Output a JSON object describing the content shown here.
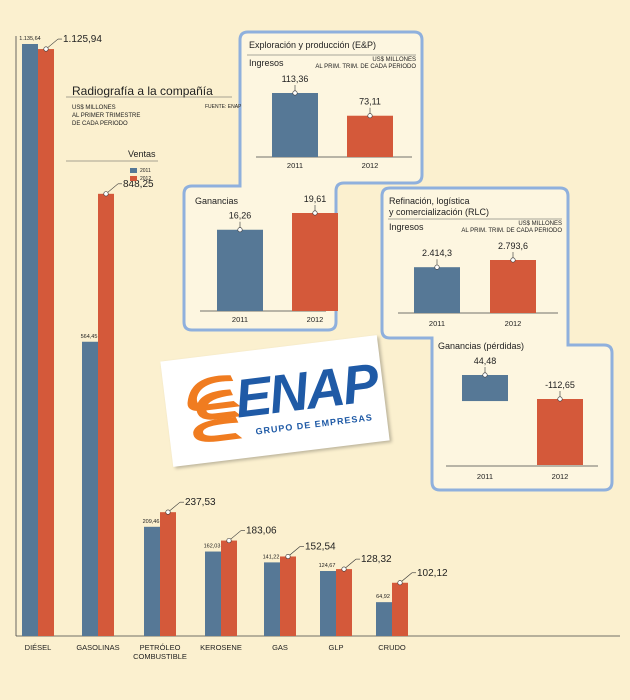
{
  "colors": {
    "y2011": "#567896",
    "y2012": "#d4593a",
    "panel_border": "#8fb0dd",
    "panel_bg": "#fdf6e0"
  },
  "header": {
    "title": "Radiografía a la compañía",
    "units": [
      "US$ MILLONES",
      "AL PRIMER TRIMESTRE",
      "DE CADA PERIODO"
    ],
    "source": "FUENTE: ENAP",
    "section": "Ventas",
    "legend": [
      "2011",
      "2012"
    ]
  },
  "logo": {
    "text": "ENAP",
    "subtitle": "GRUPO DE EMPRESAS"
  },
  "chart_data": [
    {
      "type": "bar",
      "title": "Ventas",
      "categories": [
        "DIÉSEL",
        "GASOLINAS",
        "PETRÓLEO COMBUSTIBLE",
        "KEROSENE",
        "GAS",
        "GLP",
        "CRUDO"
      ],
      "category_lines": [
        [
          "DIÉSEL"
        ],
        [
          "GASOLINAS"
        ],
        [
          "PETRÓLEO",
          "COMBUSTIBLE"
        ],
        [
          "KEROSENE"
        ],
        [
          "GAS"
        ],
        [
          "GLP"
        ],
        [
          "CRUDO"
        ]
      ],
      "series": [
        {
          "name": "2011",
          "values": [
            1135.64,
            564.45,
            209.46,
            162.03,
            141.22,
            124.67,
            64.92
          ],
          "labels": [
            "1.135,64",
            "564,45",
            "209,46",
            "162,03",
            "141,22",
            "124,67",
            "64,92"
          ]
        },
        {
          "name": "2012",
          "values": [
            1125.94,
            848.25,
            237.53,
            183.06,
            152.54,
            128.32,
            102.12
          ],
          "labels": [
            "1.125,94",
            "848,25",
            "237,53",
            "183,06",
            "152,54",
            "128,32",
            "102,12"
          ]
        }
      ]
    },
    {
      "type": "bar",
      "title": "Exploración y producción (E&P)",
      "subtitle": "Ingresos",
      "units": [
        "US$ MILLONES",
        "AL PRIM. TRIM. DE CADA PERIODO"
      ],
      "categories": [
        "2011",
        "2012"
      ],
      "values": [
        113.36,
        73.11
      ],
      "labels": [
        "113,36",
        "73,11"
      ]
    },
    {
      "type": "bar",
      "title": "Ganancias",
      "categories": [
        "2011",
        "2012"
      ],
      "values": [
        16.26,
        19.61
      ],
      "labels": [
        "16,26",
        "19,61"
      ]
    },
    {
      "type": "bar",
      "title": [
        "Refinación, logística",
        "y comercialización (RLC)"
      ],
      "subtitle": "Ingresos",
      "units": [
        "US$ MILLONES",
        "AL PRIM. TRIM. DE CADA PERIODO"
      ],
      "categories": [
        "2011",
        "2012"
      ],
      "values": [
        2414.3,
        2793.6
      ],
      "labels": [
        "2.414,3",
        "2.793,6"
      ]
    },
    {
      "type": "bar",
      "title": "Ganancias (pérdidas)",
      "categories": [
        "2011",
        "2012"
      ],
      "values": [
        44.48,
        -112.65
      ],
      "labels": [
        "44,48",
        "-112,65"
      ]
    }
  ]
}
